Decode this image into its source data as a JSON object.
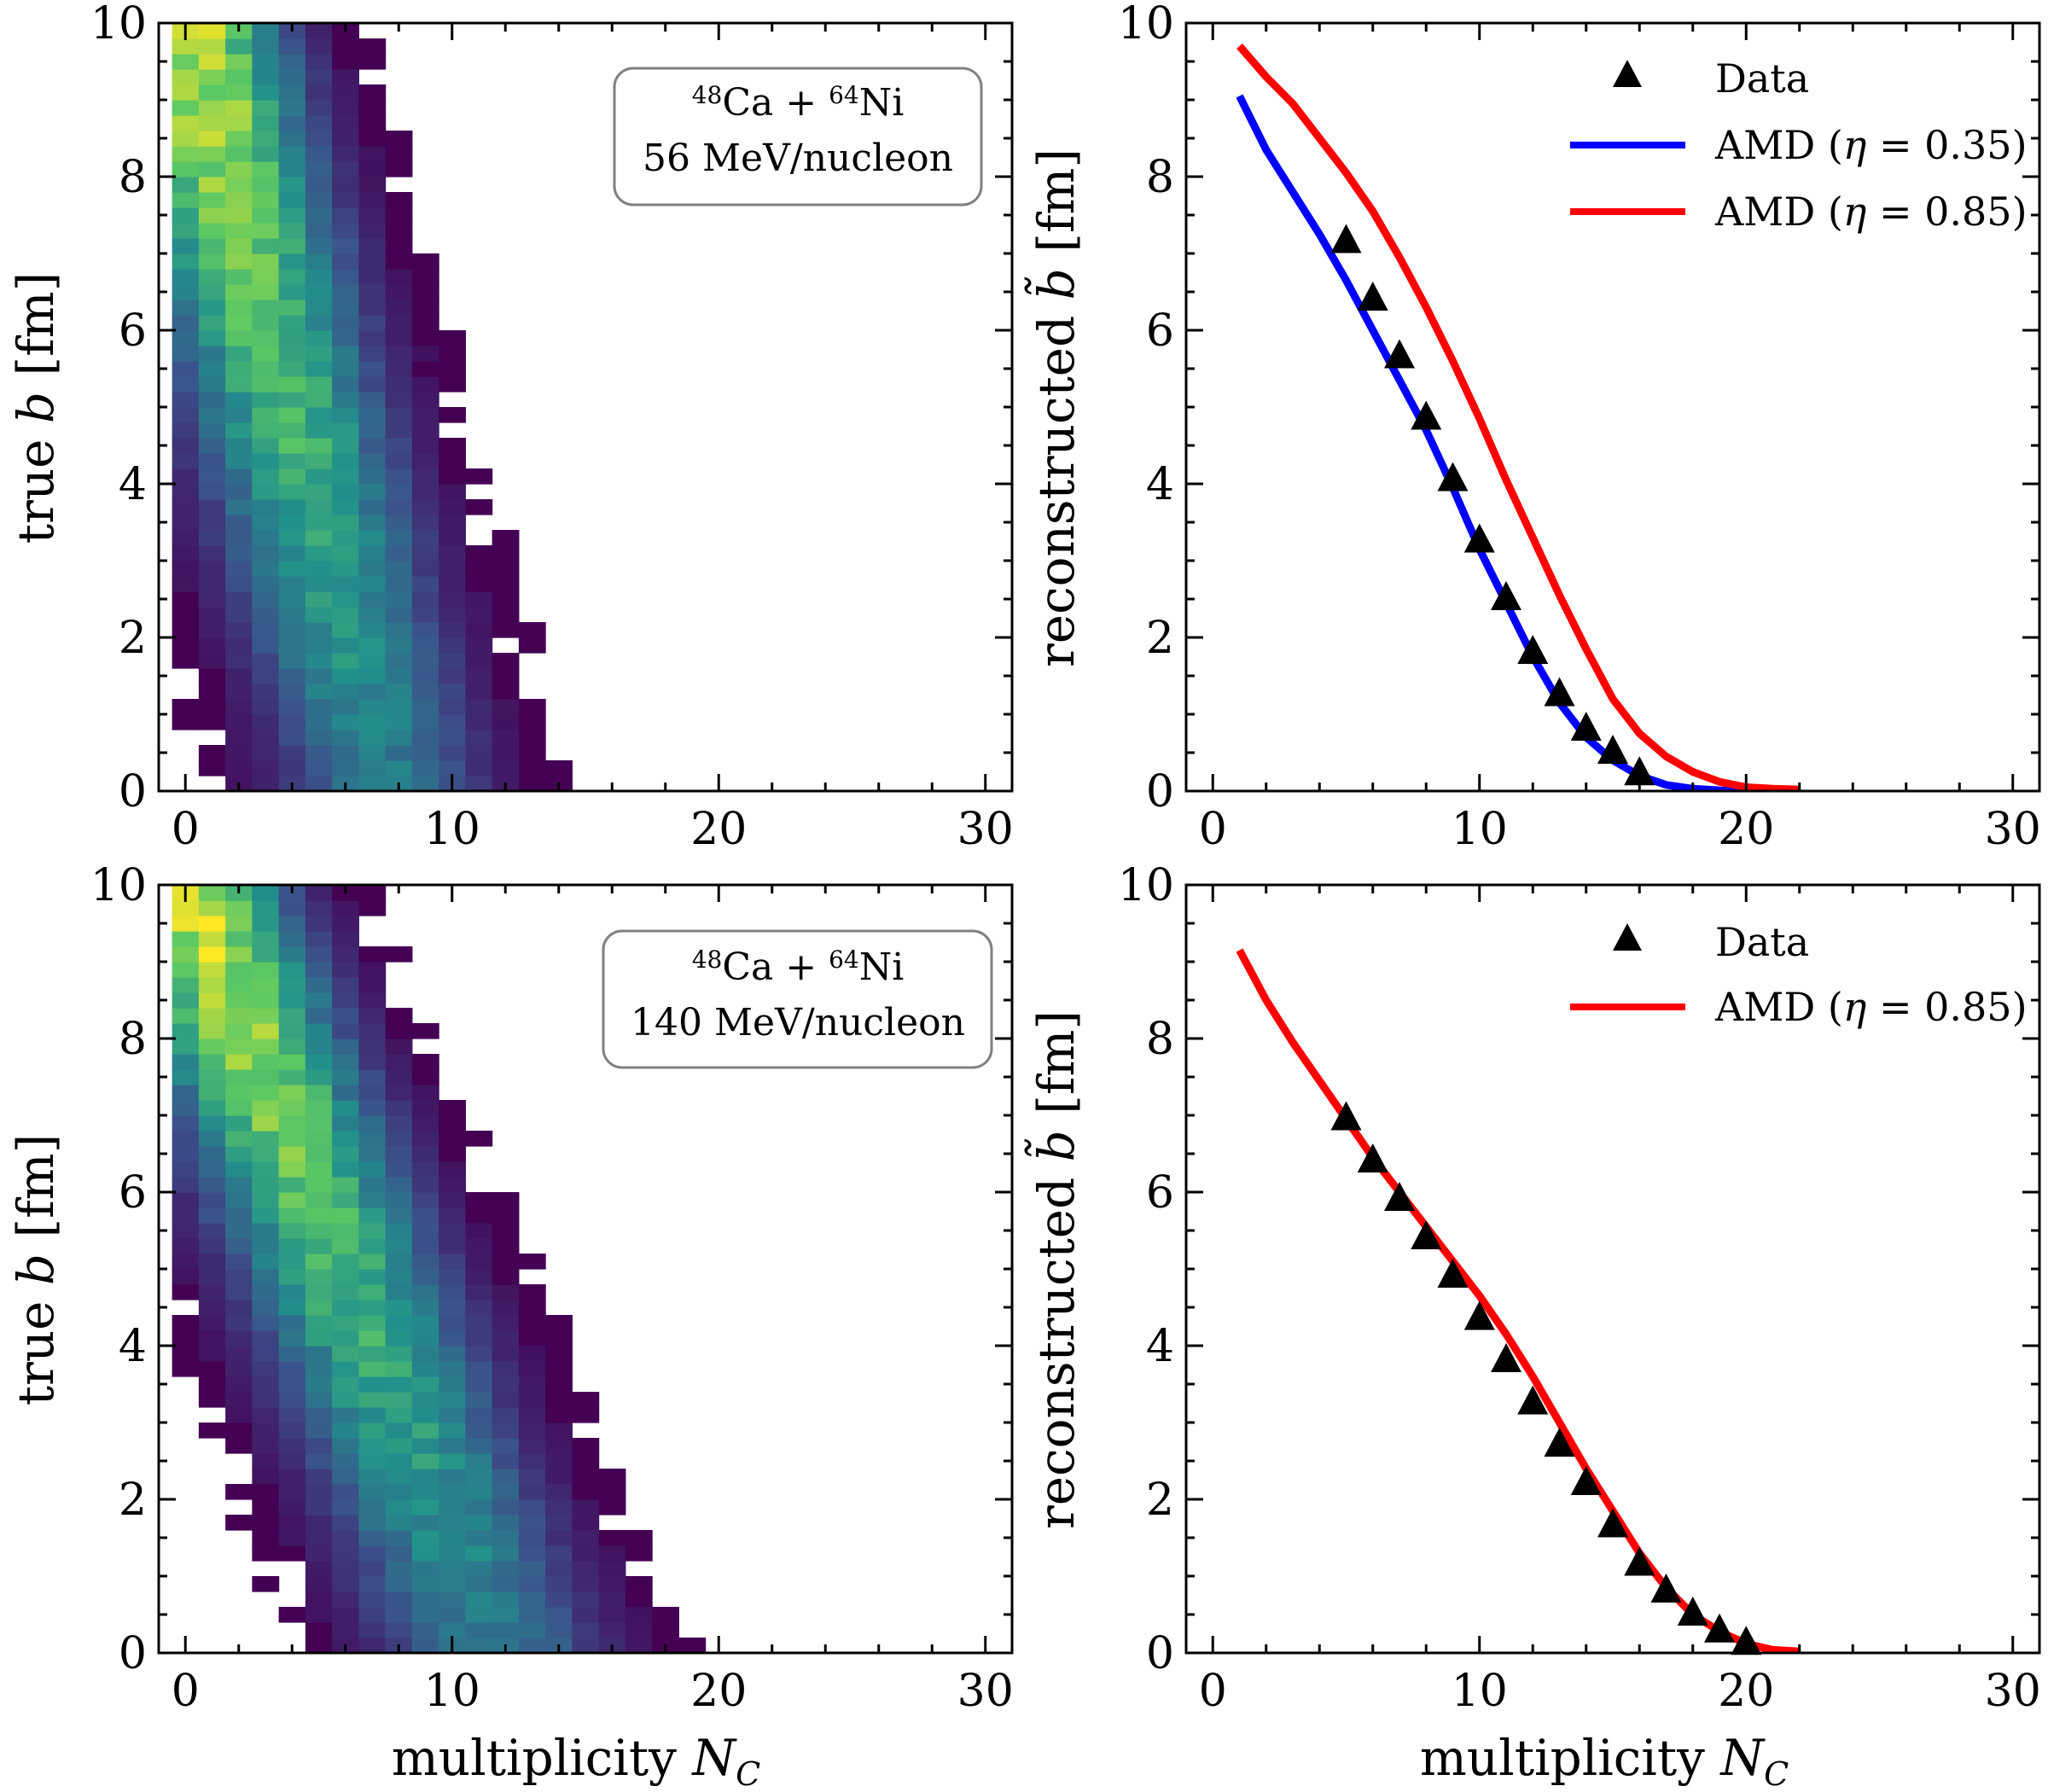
{
  "figure": {
    "xlabel_text": "multiplicity",
    "xlabel_symbol": "N",
    "xlabel_sub": "C",
    "heatmap_ylabel_text": "true",
    "heatmap_ylabel_symbol": "b",
    "heatmap_ylabel_unit": "[fm]",
    "curve_ylabel_text": "reconstructed",
    "curve_ylabel_symbol": "b̃",
    "curve_ylabel_unit": "[fm]",
    "colormap": [
      "#440154",
      "#3b528b",
      "#21918c",
      "#5ec962",
      "#fde725"
    ]
  },
  "chart_data": [
    {
      "id": "top-left",
      "type": "heatmap",
      "xlim": [
        -1,
        31
      ],
      "ylim": [
        0,
        10
      ],
      "xticks": [
        0,
        10,
        20,
        30
      ],
      "yticks": [
        0,
        2,
        4,
        6,
        8,
        10
      ],
      "ridge": {
        "b_at_zero": 10,
        "slope_n_per_fm": -0.75,
        "n_at_b0": 7.5
      },
      "annotation": {
        "projectile_mass": "48",
        "projectile": "Ca",
        "target_mass": "64",
        "target": "Ni",
        "energy": "56 MeV/nucleon"
      }
    },
    {
      "id": "top-right",
      "type": "line",
      "xlim": [
        -1,
        31
      ],
      "ylim": [
        0,
        10
      ],
      "xticks": [
        0,
        10,
        20,
        30
      ],
      "yticks": [
        0,
        2,
        4,
        6,
        8,
        10
      ],
      "series": [
        {
          "name": "Data",
          "kind": "marker",
          "color": "#000000",
          "x": [
            5,
            6,
            7,
            8,
            9,
            10,
            11,
            12,
            13,
            14,
            15,
            16
          ],
          "y": [
            7.15,
            6.4,
            5.65,
            4.85,
            4.05,
            3.25,
            2.5,
            1.8,
            1.25,
            0.8,
            0.5,
            0.22
          ]
        },
        {
          "name": "AMD",
          "eta": "0.35",
          "kind": "line",
          "color": "#0000ff",
          "x": [
            1,
            2,
            3,
            4,
            5,
            6,
            7,
            8,
            9,
            10,
            11,
            12,
            13,
            14,
            15,
            16,
            17,
            18,
            19,
            20
          ],
          "y": [
            9.05,
            8.35,
            7.8,
            7.25,
            6.65,
            6.0,
            5.35,
            4.7,
            3.95,
            3.15,
            2.45,
            1.75,
            1.15,
            0.7,
            0.4,
            0.2,
            0.08,
            0.03,
            0.01,
            0.0
          ]
        },
        {
          "name": "AMD",
          "eta": "0.85",
          "kind": "line",
          "color": "#ff0000",
          "x": [
            1,
            2,
            3,
            4,
            5,
            6,
            7,
            8,
            9,
            10,
            11,
            12,
            13,
            14,
            15,
            16,
            17,
            18,
            19,
            20,
            21,
            22
          ],
          "y": [
            9.7,
            9.3,
            8.95,
            8.5,
            8.05,
            7.55,
            6.95,
            6.3,
            5.6,
            4.85,
            4.05,
            3.3,
            2.55,
            1.85,
            1.2,
            0.75,
            0.45,
            0.25,
            0.12,
            0.05,
            0.03,
            0.02
          ]
        }
      ]
    },
    {
      "id": "bottom-left",
      "type": "heatmap",
      "xlim": [
        -1,
        31
      ],
      "ylim": [
        0,
        10
      ],
      "xticks": [
        0,
        10,
        20,
        30
      ],
      "yticks": [
        0,
        2,
        4,
        6,
        8,
        10
      ],
      "ridge": {
        "b_at_zero": 10,
        "slope_n_per_fm": -1.15,
        "n_at_b0": 11.5
      },
      "annotation": {
        "projectile_mass": "48",
        "projectile": "Ca",
        "target_mass": "64",
        "target": "Ni",
        "energy": "140 MeV/nucleon"
      }
    },
    {
      "id": "bottom-right",
      "type": "line",
      "xlim": [
        -1,
        31
      ],
      "ylim": [
        0,
        10
      ],
      "xticks": [
        0,
        10,
        20,
        30
      ],
      "yticks": [
        0,
        2,
        4,
        6,
        8,
        10
      ],
      "series": [
        {
          "name": "Data",
          "kind": "marker",
          "color": "#000000",
          "x": [
            5,
            6,
            7,
            8,
            9,
            10,
            11,
            12,
            13,
            14,
            15,
            16,
            17,
            18,
            19,
            20
          ],
          "y": [
            6.95,
            6.4,
            5.9,
            5.4,
            4.9,
            4.35,
            3.8,
            3.25,
            2.7,
            2.2,
            1.65,
            1.15,
            0.8,
            0.5,
            0.28,
            0.12
          ]
        },
        {
          "name": "AMD",
          "eta": "0.85",
          "kind": "line",
          "color": "#ff0000",
          "x": [
            1,
            2,
            3,
            4,
            5,
            6,
            7,
            8,
            9,
            10,
            11,
            12,
            13,
            14,
            15,
            16,
            17,
            18,
            19,
            20,
            21,
            22
          ],
          "y": [
            9.15,
            8.5,
            7.95,
            7.45,
            6.95,
            6.45,
            6.0,
            5.55,
            5.1,
            4.65,
            4.15,
            3.6,
            3.0,
            2.4,
            1.85,
            1.3,
            0.85,
            0.5,
            0.28,
            0.12,
            0.04,
            0.02
          ]
        }
      ]
    }
  ]
}
